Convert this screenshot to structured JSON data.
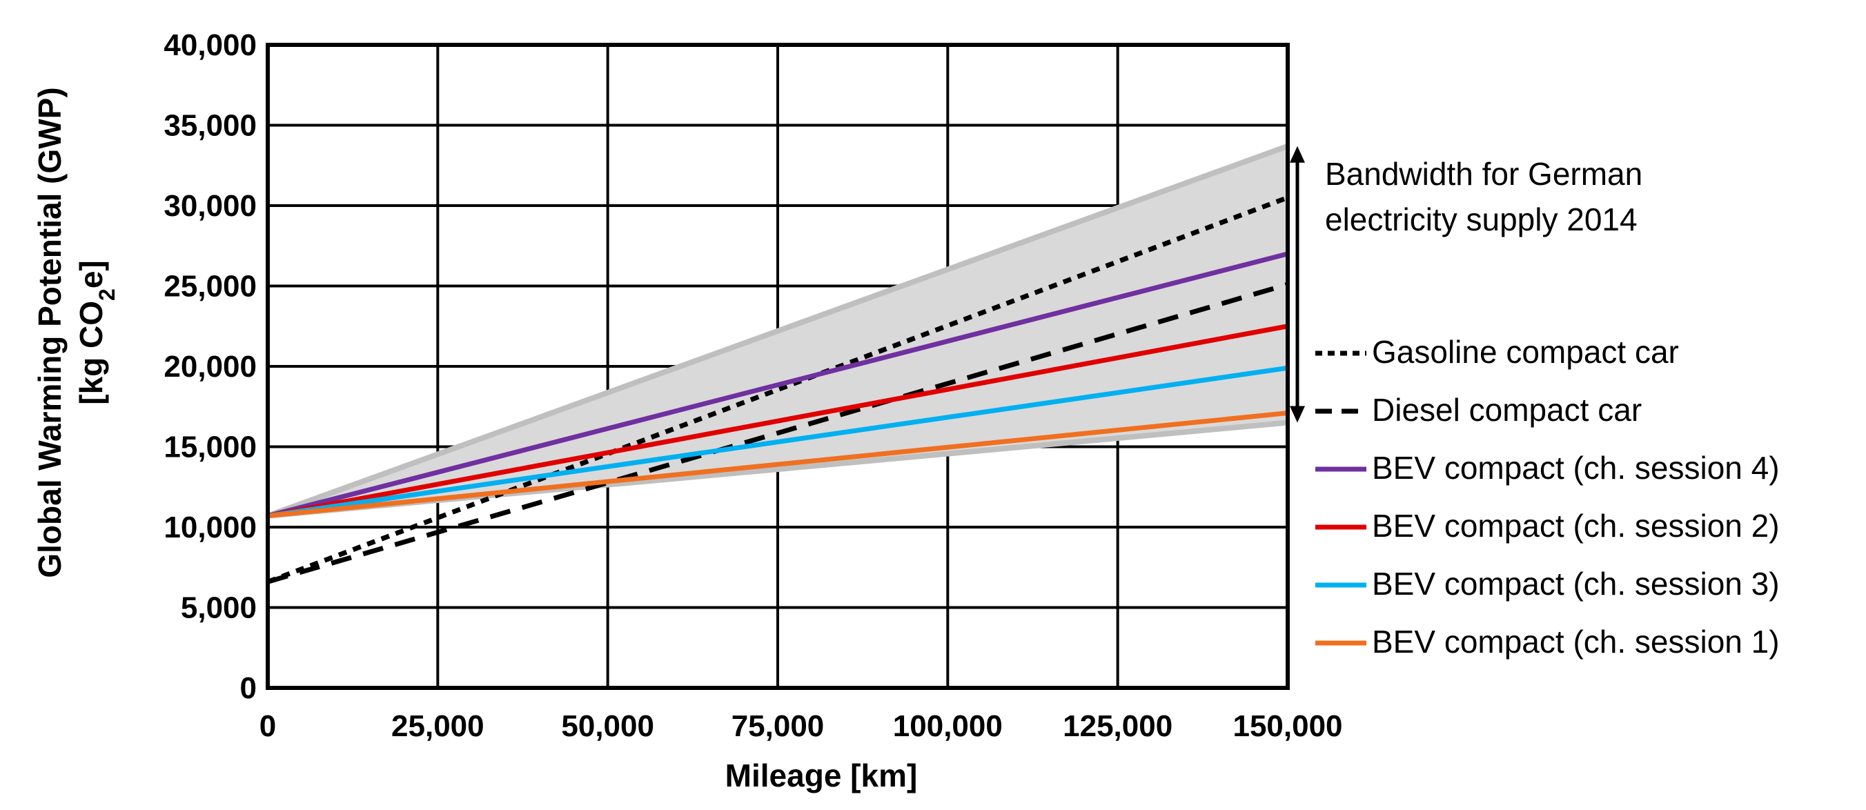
{
  "chart_data": {
    "type": "line",
    "xlabel": "Mileage [km]",
    "ylabel_line1": "Global Warming Potential (GWP)",
    "ylabel_line2_pre": "[kg CO",
    "ylabel_line2_sub": "2",
    "ylabel_line2_post": "e]",
    "xlim": [
      0,
      150000
    ],
    "ylim": [
      0,
      40000
    ],
    "grid": true,
    "x_ticks": [
      "0",
      "25,000",
      "50,000",
      "75,000",
      "100,000",
      "125,000",
      "150,000"
    ],
    "y_ticks": [
      "0",
      "5,000",
      "10,000",
      "15,000",
      "20,000",
      "25,000",
      "30,000",
      "35,000",
      "40,000"
    ],
    "x_tick_values": [
      0,
      25000,
      50000,
      75000,
      100000,
      125000,
      150000
    ],
    "y_tick_values": [
      0,
      5000,
      10000,
      15000,
      20000,
      25000,
      30000,
      35000,
      40000
    ],
    "band": {
      "x": [
        0,
        150000
      ],
      "upper": [
        10700,
        33700
      ],
      "lower": [
        10700,
        16500
      ],
      "fill": "#d9d9d9",
      "edge": "#bfbfbf"
    },
    "annotation": {
      "text_line1": "Bandwidth for German",
      "text_line2": "electricity supply 2014",
      "arrow_x": 150000,
      "arrow_y": [
        16500,
        33700
      ]
    },
    "series": [
      {
        "name": "Gasoline compact car",
        "x": [
          0,
          150000
        ],
        "y": [
          6600,
          30500
        ],
        "color": "#000000",
        "style": "dotted"
      },
      {
        "name": "Diesel compact car",
        "x": [
          0,
          150000
        ],
        "y": [
          6600,
          25100
        ],
        "color": "#000000",
        "style": "dashed"
      },
      {
        "name": "BEV compact (ch. session 4)",
        "x": [
          0,
          150000
        ],
        "y": [
          10700,
          27000
        ],
        "color": "#7030a0",
        "style": "solid"
      },
      {
        "name": "BEV compact (ch. session 2)",
        "x": [
          0,
          150000
        ],
        "y": [
          10700,
          22500
        ],
        "color": "#e00000",
        "style": "solid"
      },
      {
        "name": "BEV compact (ch. session 3)",
        "x": [
          0,
          150000
        ],
        "y": [
          10700,
          19900
        ],
        "color": "#00b0f0",
        "style": "solid"
      },
      {
        "name": "BEV compact (ch. session 1)",
        "x": [
          0,
          150000
        ],
        "y": [
          10700,
          17100
        ],
        "color": "#f07020",
        "style": "solid"
      }
    ]
  }
}
